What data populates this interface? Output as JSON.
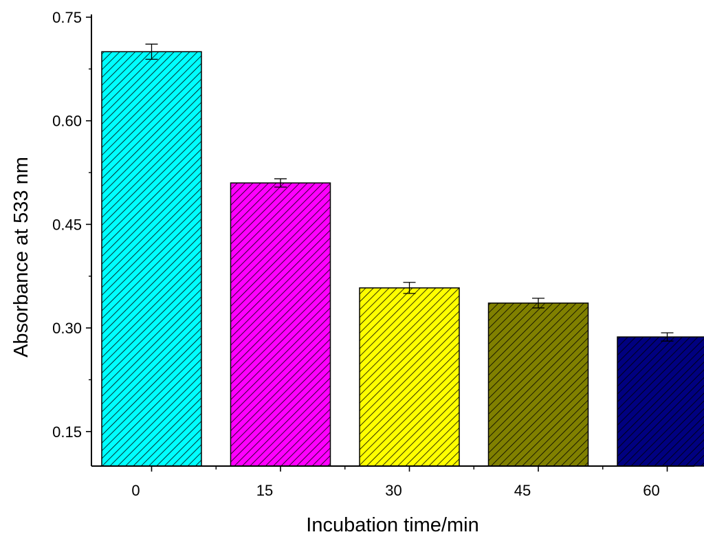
{
  "chart_data": {
    "type": "bar",
    "xlabel": "Incubation time/min",
    "ylabel": "Absorbance at 533 nm",
    "categories": [
      "0",
      "15",
      "30",
      "45",
      "60"
    ],
    "values": [
      0.7,
      0.51,
      0.358,
      0.336,
      0.287
    ],
    "errors": [
      0.011,
      0.006,
      0.008,
      0.007,
      0.006
    ],
    "colors": [
      "#00FFFF",
      "#FF00FF",
      "#FFFF00",
      "#808000",
      "#000080"
    ],
    "ylim": [
      0.1,
      0.75
    ],
    "yticks": [
      "0.15",
      "0.30",
      "0.45",
      "0.60",
      "0.75"
    ],
    "hatch": "diagonal",
    "grid": false,
    "legend": "none"
  }
}
